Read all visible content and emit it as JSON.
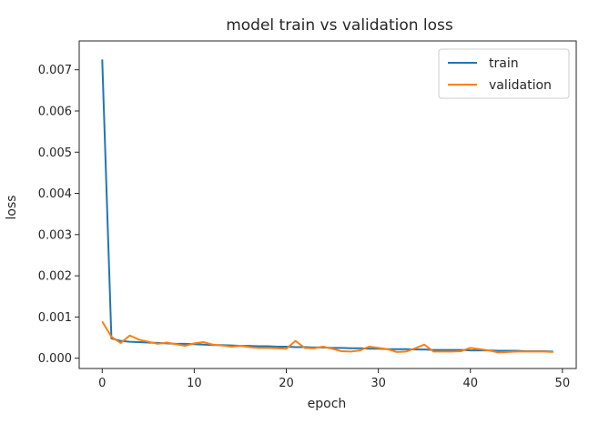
{
  "chart_data": {
    "type": "line",
    "title": "model train vs validation loss",
    "xlabel": "epoch",
    "ylabel": "loss",
    "xlim": [
      -2.5,
      51.5
    ],
    "ylim": [
      -0.00025,
      0.0077
    ],
    "xticks": [
      0,
      10,
      20,
      30,
      40,
      50
    ],
    "yticks": [
      0.0,
      0.001,
      0.002,
      0.003,
      0.004,
      0.005,
      0.006,
      0.007
    ],
    "ytick_labels": [
      "0.000",
      "0.001",
      "0.002",
      "0.003",
      "0.004",
      "0.005",
      "0.006",
      "0.007"
    ],
    "grid": false,
    "legend_position": "top-right",
    "x": [
      0,
      1,
      2,
      3,
      4,
      5,
      6,
      7,
      8,
      9,
      10,
      11,
      12,
      13,
      14,
      15,
      16,
      17,
      18,
      19,
      20,
      21,
      22,
      23,
      24,
      25,
      26,
      27,
      28,
      29,
      30,
      31,
      32,
      33,
      34,
      35,
      36,
      37,
      38,
      39,
      40,
      41,
      42,
      43,
      44,
      45,
      46,
      47,
      48,
      49
    ],
    "series": [
      {
        "name": "train",
        "color": "#1f77b4",
        "values": [
          0.00725,
          0.00048,
          0.00042,
          0.0004,
          0.00039,
          0.00038,
          0.00037,
          0.00036,
          0.00035,
          0.00035,
          0.00034,
          0.00033,
          0.00032,
          0.00032,
          0.00031,
          0.0003,
          0.0003,
          0.00029,
          0.00029,
          0.00028,
          0.00028,
          0.00027,
          0.00027,
          0.00026,
          0.00026,
          0.00025,
          0.00025,
          0.00024,
          0.00024,
          0.00023,
          0.00023,
          0.00022,
          0.00022,
          0.00022,
          0.00021,
          0.00021,
          0.0002,
          0.0002,
          0.0002,
          0.0002,
          0.00019,
          0.00019,
          0.00019,
          0.00018,
          0.00018,
          0.00018,
          0.00017,
          0.00017,
          0.00017,
          0.00016
        ]
      },
      {
        "name": "validation",
        "color": "#ff7f0e",
        "values": [
          0.00089,
          0.00052,
          0.00037,
          0.00055,
          0.00045,
          0.0004,
          0.00035,
          0.00038,
          0.00034,
          0.0003,
          0.00036,
          0.00039,
          0.00033,
          0.00031,
          0.00028,
          0.0003,
          0.00027,
          0.00025,
          0.00025,
          0.00024,
          0.00023,
          0.00042,
          0.00025,
          0.00024,
          0.00028,
          0.00023,
          0.00017,
          0.00016,
          0.00019,
          0.00028,
          0.00025,
          0.00022,
          0.00015,
          0.00016,
          0.00024,
          0.00033,
          0.00016,
          0.00016,
          0.00016,
          0.00017,
          0.00025,
          0.00022,
          0.00019,
          0.00014,
          0.00015,
          0.00016,
          0.00016,
          0.00016,
          0.00016,
          0.00015
        ]
      }
    ]
  }
}
